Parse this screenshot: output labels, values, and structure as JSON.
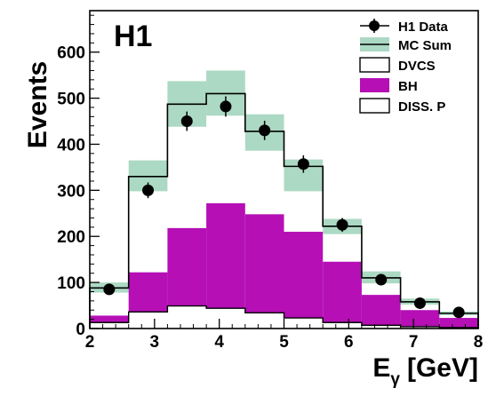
{
  "chart_data": {
    "type": "histogram",
    "experiment_label": "H1",
    "xlabel_main": "E",
    "xlabel_sub": "γ",
    "xlabel_unit": "[GeV]",
    "ylabel": "Events",
    "xlim": [
      2,
      8
    ],
    "ylim": [
      0,
      690
    ],
    "x_ticks": [
      2,
      3,
      4,
      5,
      6,
      7,
      8
    ],
    "y_ticks": [
      0,
      100,
      200,
      300,
      400,
      500,
      600
    ],
    "bin_edges": [
      2.0,
      2.6,
      3.2,
      3.8,
      4.4,
      5.0,
      5.6,
      6.2,
      6.8,
      7.4,
      8.0
    ],
    "legend": {
      "data": "H1 Data",
      "mc_sum": "MC Sum",
      "dvcs": "DVCS",
      "bh": "BH",
      "diss": "DISS. P"
    },
    "colors": {
      "bh": "#b50fb5",
      "mc_band": "#acd9c4",
      "line": "#000000",
      "marker": "#000000"
    },
    "series": {
      "mc_sum": [
        88,
        330,
        487,
        510,
        428,
        352,
        222,
        110,
        58,
        33
      ],
      "mc_band_low": [
        78,
        298,
        438,
        462,
        386,
        298,
        205,
        98,
        52,
        29
      ],
      "mc_band_high": [
        100,
        365,
        537,
        560,
        465,
        367,
        238,
        124,
        65,
        37
      ],
      "bh_plus_diss": [
        28,
        122,
        218,
        272,
        248,
        210,
        145,
        73,
        40,
        23
      ],
      "diss": [
        13,
        36,
        49,
        44,
        34,
        23,
        13,
        7,
        4,
        2
      ],
      "data_x": [
        2.3,
        2.9,
        3.5,
        4.1,
        4.7,
        5.3,
        5.9,
        6.5,
        7.1,
        7.7
      ],
      "data_y": [
        85,
        300,
        450,
        482,
        430,
        357,
        225,
        106,
        55,
        35
      ],
      "data_err": [
        8,
        17,
        21,
        22,
        21,
        19,
        15,
        10,
        7,
        6
      ]
    }
  }
}
